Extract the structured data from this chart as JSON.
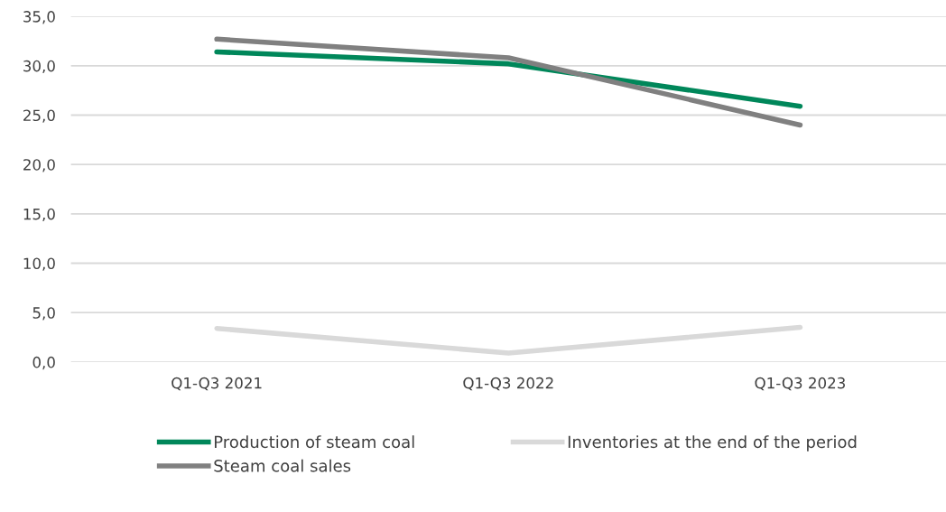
{
  "chart_data": {
    "type": "line",
    "categories": [
      "Q1-Q3 2021",
      "Q1-Q3 2022",
      "Q1-Q3 2023"
    ],
    "series": [
      {
        "name": "Production of steam coal",
        "color": "#00875a",
        "values": [
          31.4,
          30.2,
          25.9
        ]
      },
      {
        "name": "Steam coal sales",
        "color": "#808080",
        "values": [
          32.7,
          30.8,
          24.0
        ]
      },
      {
        "name": "Inventories at the end of the period",
        "color": "#d9d9d9",
        "values": [
          3.4,
          0.9,
          3.5
        ]
      }
    ],
    "ylim": [
      0,
      35
    ],
    "yticks": [
      {
        "value": 0,
        "label": "0,0"
      },
      {
        "value": 5,
        "label": "5,0"
      },
      {
        "value": 10,
        "label": "10,0"
      },
      {
        "value": 15,
        "label": "15,0"
      },
      {
        "value": 20,
        "label": "20,0"
      },
      {
        "value": 25,
        "label": "25,0"
      },
      {
        "value": 30,
        "label": "30,0"
      },
      {
        "value": 35,
        "label": "35,0"
      }
    ],
    "grid": "y",
    "legend": "bottom",
    "marker": "none",
    "line_style": "solid"
  }
}
